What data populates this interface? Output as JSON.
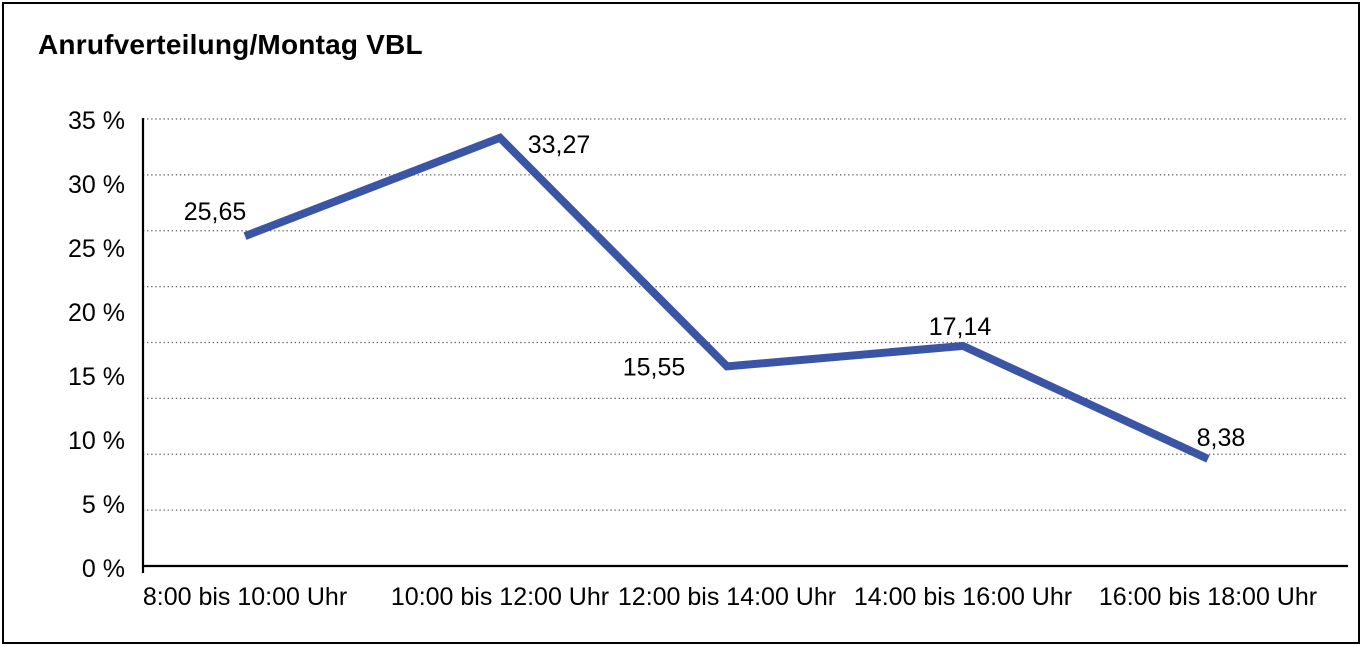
{
  "title": "Anrufverteilung/Montag VBL",
  "chart_data": {
    "type": "line",
    "title": "Anrufverteilung/Montag VBL",
    "categories": [
      "8:00 bis 10:00 Uhr",
      "10:00 bis 12:00 Uhr",
      "12:00 bis 14:00 Uhr",
      "14:00 bis 16:00 Uhr",
      "16:00 bis 18:00 Uhr"
    ],
    "values": [
      25.65,
      33.27,
      15.55,
      17.14,
      8.38
    ],
    "point_labels": [
      "25,65",
      "33,27",
      "15,55",
      "17,14",
      "8,38"
    ],
    "label_placement": [
      "above-left",
      "right",
      "left",
      "above",
      "above-right"
    ],
    "y_tick_labels": [
      "35 %",
      "30 %",
      "25 %",
      "20 %",
      "15 %",
      "10 %",
      "5 %",
      "0 %"
    ],
    "ylim": [
      0,
      35
    ],
    "xlabel": "",
    "ylabel": "",
    "unit": "%",
    "grid": "horizontal-dotted",
    "legend": "none",
    "line_color": "#3A55A5",
    "axis_color": "#000000",
    "background_color": "#FFFFFF"
  }
}
